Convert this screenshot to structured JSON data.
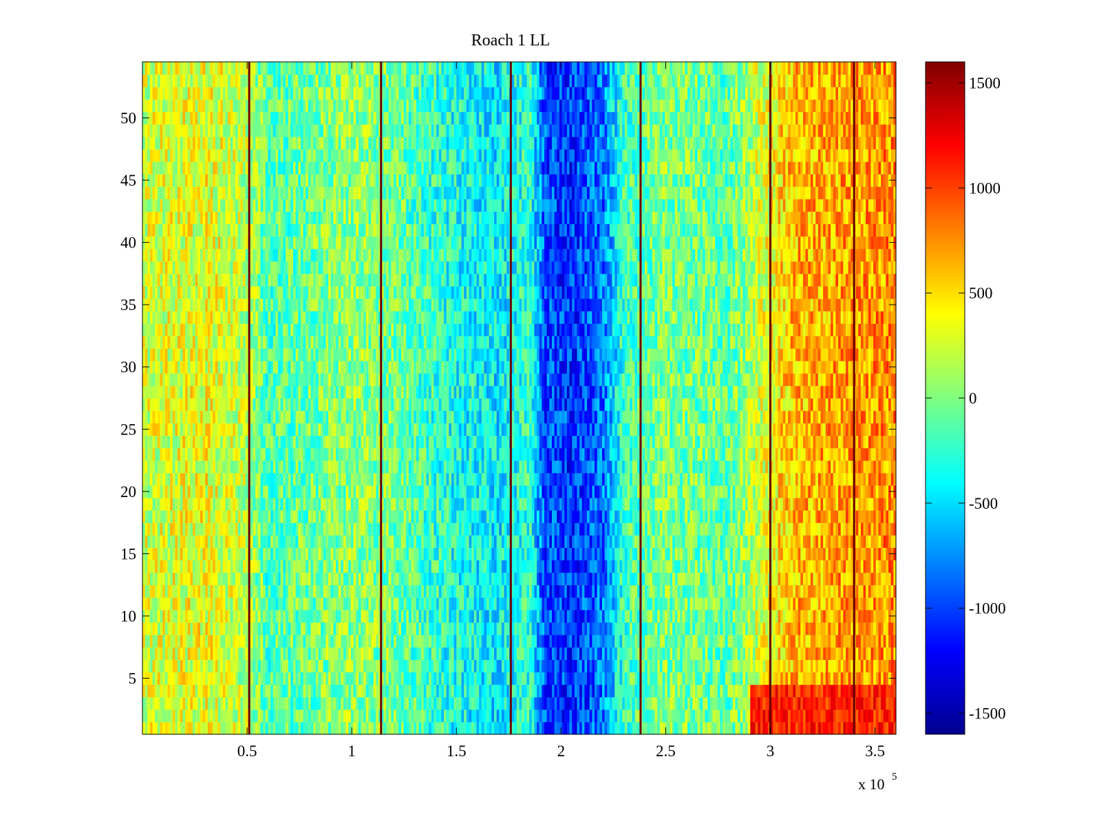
{
  "chart_data": {
    "type": "heatmap",
    "title": "Roach 1 LL",
    "xlabel": "",
    "ylabel": "",
    "x_exponent_label": "x 10",
    "x_exponent_power": "5",
    "xlim": [
      0,
      3.6
    ],
    "ylim": [
      0.5,
      54.5
    ],
    "xticks": [
      0.5,
      1,
      1.5,
      2,
      2.5,
      3,
      3.5
    ],
    "xtick_labels": [
      "0.5",
      "1",
      "1.5",
      "2",
      "2.5",
      "3",
      "3.5"
    ],
    "yticks": [
      5,
      10,
      15,
      20,
      25,
      30,
      35,
      40,
      45,
      50
    ],
    "ytick_labels": [
      "5",
      "10",
      "15",
      "20",
      "25",
      "30",
      "35",
      "40",
      "45",
      "50"
    ],
    "rows": 54,
    "colormap": "jet",
    "colorbar": {
      "clim": [
        -1600,
        1600
      ],
      "ticks": [
        -1500,
        -1000,
        -500,
        0,
        500,
        1000,
        1500
      ],
      "tick_labels": [
        "-1500",
        "-1000",
        "-500",
        "0",
        "500",
        "1000",
        "1500"
      ]
    },
    "column_profile": {
      "x": [
        0,
        0.3,
        0.5,
        0.6,
        1.0,
        1.15,
        1.45,
        1.7,
        1.85,
        1.92,
        2.05,
        2.2,
        2.3,
        2.5,
        2.8,
        2.95,
        3.1,
        3.4,
        3.6
      ],
      "values": [
        250,
        350,
        180,
        -150,
        50,
        0,
        -300,
        -450,
        -250,
        -950,
        -1050,
        -850,
        -200,
        0,
        -100,
        250,
        600,
        700,
        750
      ]
    },
    "vertical_lines_x": [
      0.51,
      1.14,
      1.76,
      2.38,
      3.0,
      3.4
    ],
    "bottom_rows_hot": {
      "rows": [
        1,
        2,
        3,
        4
      ],
      "x_from": 2.9,
      "value": 1100
    }
  }
}
